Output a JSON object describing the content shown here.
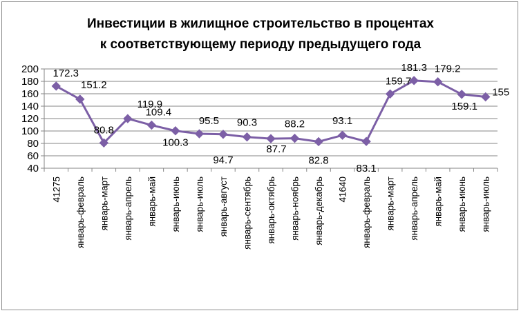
{
  "chart_data": {
    "type": "line",
    "title_lines": [
      "Инвестиции в жилищное строительство в процентах",
      "к соответствующему периоду предыдущего года"
    ],
    "xlabel": "",
    "ylabel": "",
    "ylim": [
      40,
      200
    ],
    "yticks": [
      40,
      60,
      80,
      100,
      120,
      140,
      160,
      180,
      200
    ],
    "grid": true,
    "legend": "none",
    "categories": [
      "41275",
      "январь-февраль",
      "январь-март",
      "январь-апрель",
      "январь-май",
      "январь-июнь",
      "январь-июль",
      "январь-август",
      "январь-сентябрь",
      "январь-октябрь",
      "январь-ноябрь",
      "январь-декабрь",
      "41640",
      "январь-февраль",
      "январь-март",
      "январь-апрель",
      "январь-май",
      "январь-июнь",
      "январь-июль"
    ],
    "series": [
      {
        "values": [
          172.3,
          151.2,
          80.8,
          119.9,
          109.4,
          100.3,
          95.5,
          94.7,
          90.3,
          87.7,
          88.2,
          82.8,
          93.1,
          83.1,
          159.7,
          181.3,
          179.2,
          159.1,
          155
        ],
        "labels": [
          "172.3",
          "151.2",
          "80.8",
          "119.9",
          "109.4",
          "100.3",
          "95.5",
          "94.7",
          "90.3",
          "87.7",
          "88.2",
          "82.8",
          "93.1",
          "83.1",
          "159.7",
          "181.3",
          "179.2",
          "159.1",
          "155"
        ]
      }
    ],
    "colors": {
      "line": "#7c5fa6",
      "grid": "#868686",
      "axis": "#868686"
    }
  }
}
